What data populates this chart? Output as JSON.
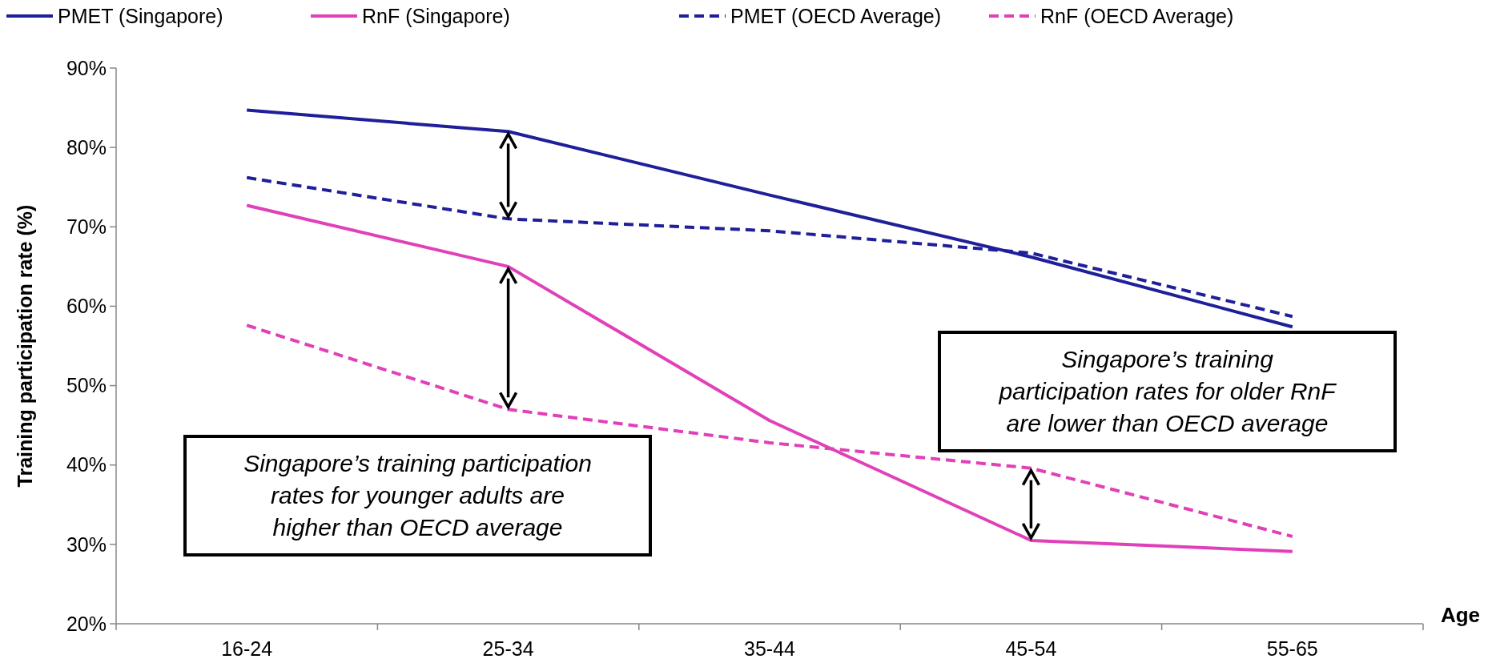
{
  "chart_data": {
    "type": "line",
    "xlabel": "Age",
    "ylabel": "Training participation rate (%)",
    "categories": [
      "16-24",
      "25-34",
      "35-44",
      "45-54",
      "55-65"
    ],
    "series": [
      {
        "name": "PMET (Singapore)",
        "color": "#1f1f99",
        "values": [
          84.7,
          82,
          74,
          66.2,
          57.4
        ],
        "line_style": "solid"
      },
      {
        "name": "RnF (Singapore)",
        "color": "#e040b8",
        "values": [
          72.7,
          65,
          45.6,
          30.5,
          29.1
        ],
        "line_style": "solid"
      },
      {
        "name": "PMET (OECD Average)",
        "color": "#1f1f99",
        "values": [
          76.2,
          71,
          69.5,
          66.7,
          58.7
        ],
        "line_style": "dashed"
      },
      {
        "name": "RnF (OECD Average)",
        "color": "#e040b8",
        "values": [
          57.6,
          47,
          42.8,
          39.6,
          31
        ],
        "line_style": "dashed"
      }
    ],
    "ylim": [
      20,
      90
    ],
    "yticks": [
      {
        "value": 20,
        "label": "20%"
      },
      {
        "value": 30,
        "label": "30%"
      },
      {
        "value": 40,
        "label": "40%"
      },
      {
        "value": 50,
        "label": "50%"
      },
      {
        "value": 60,
        "label": "60%"
      },
      {
        "value": 70,
        "label": "70%"
      },
      {
        "value": 80,
        "label": "80%"
      },
      {
        "value": 90,
        "label": "90%"
      }
    ],
    "legend": "top",
    "grid": false,
    "marker": "none",
    "annotations": [
      "Singapore’s training participation rates for younger adults are higher than OECD average",
      "Singapore’s training participation rates for older RnF are lower than OECD average"
    ]
  }
}
